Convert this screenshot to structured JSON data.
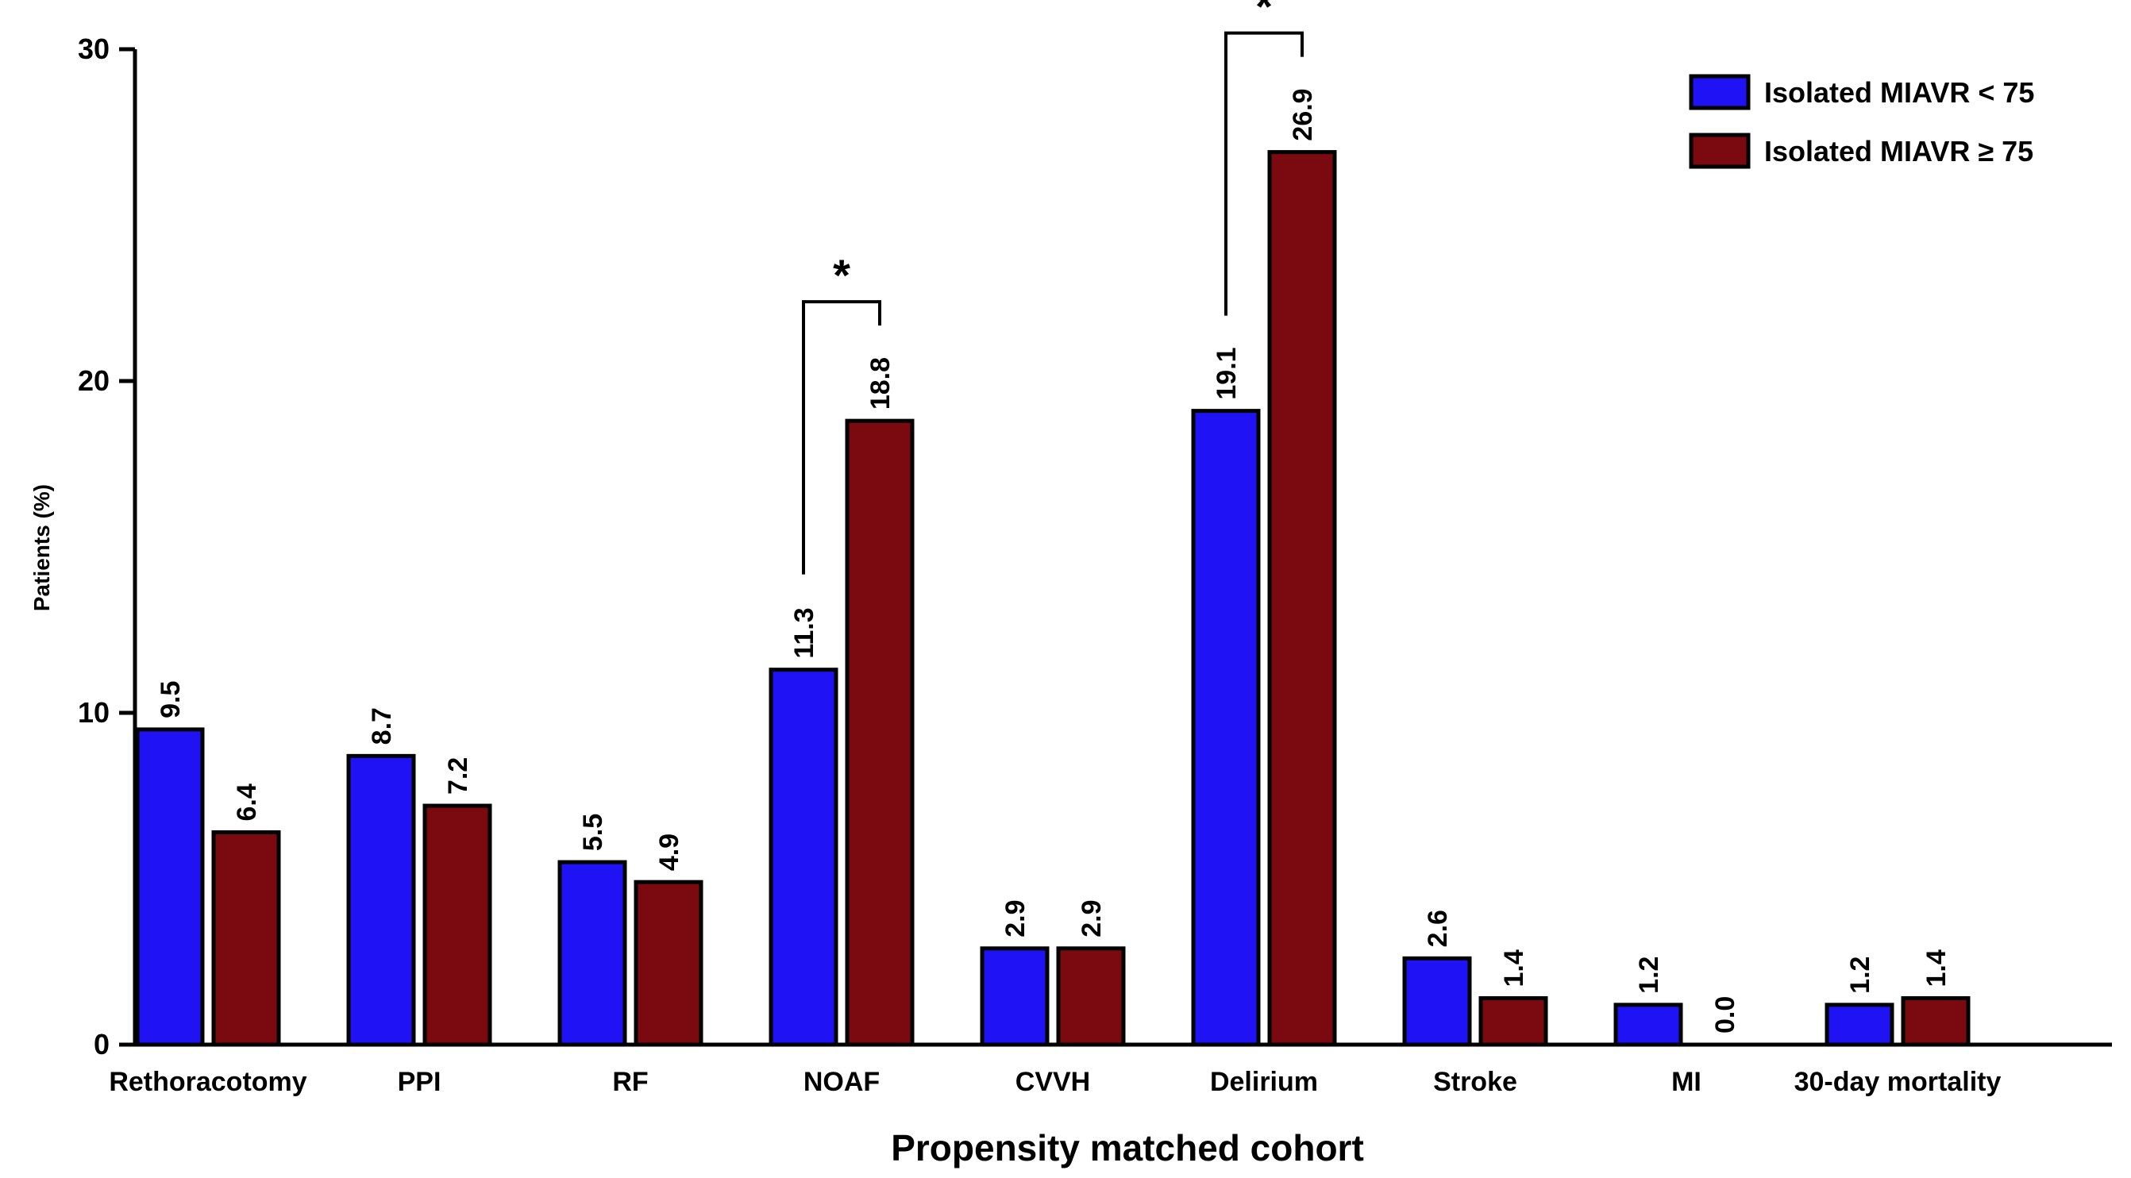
{
  "chart_data": {
    "type": "bar",
    "title": "",
    "xlabel": "Propensity matched cohort",
    "ylabel": "Patients (%)",
    "ylim": [
      0,
      30
    ],
    "yticks": [
      "0",
      "10",
      "20",
      "30"
    ],
    "categories": [
      "Rethoracotomy",
      "PPI",
      "RF",
      "NOAF",
      "CVVH",
      "Delirium",
      "Stroke",
      "MI",
      "30-day mortality"
    ],
    "series": [
      {
        "name": "Isolated MIAVR < 75",
        "color": "#1f12f5",
        "values": [
          9.5,
          8.7,
          5.5,
          11.3,
          2.9,
          19.1,
          2.6,
          1.2,
          1.2
        ],
        "labels": [
          "9.5",
          "8.7",
          "5.5",
          "11.3",
          "2.9",
          "19.1",
          "2.6",
          "1.2",
          "1.2"
        ]
      },
      {
        "name": "Isolated MIAVR ≥ 75",
        "color": "#7a0a0f",
        "values": [
          6.4,
          7.2,
          4.9,
          18.8,
          2.9,
          26.9,
          1.4,
          0.0,
          1.4
        ],
        "labels": [
          "6.4",
          "7.2",
          "4.9",
          "18.8",
          "2.9",
          "26.9",
          "1.4",
          "0.0",
          "1.4"
        ]
      }
    ],
    "significance": [
      {
        "category": "NOAF",
        "marker": "*"
      },
      {
        "category": "Delirium",
        "marker": "*"
      }
    ],
    "legend": "top-right",
    "grid": false
  }
}
